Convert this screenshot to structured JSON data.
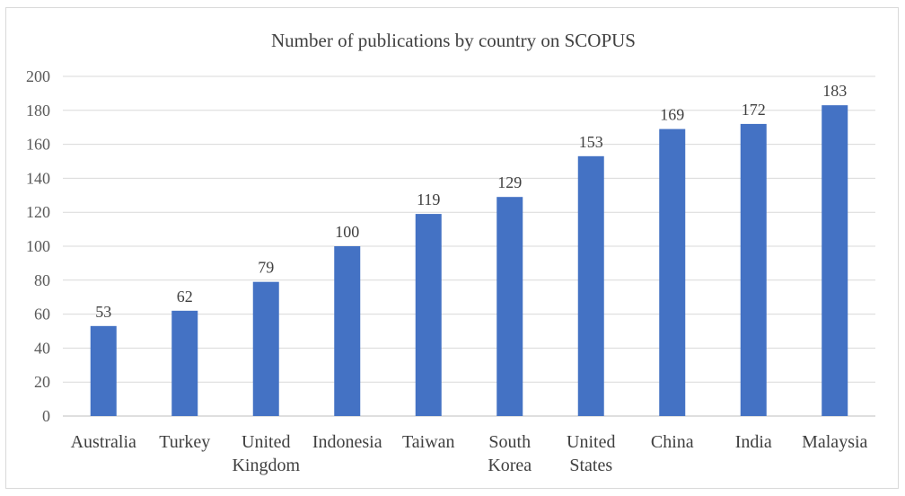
{
  "chart_data": {
    "type": "bar",
    "title": "Number of publications by country on SCOPUS",
    "xlabel": "",
    "ylabel": "",
    "ylim": [
      0,
      200
    ],
    "yticks": [
      0,
      20,
      40,
      60,
      80,
      100,
      120,
      140,
      160,
      180,
      200
    ],
    "grid": true,
    "legend": "none",
    "categories": [
      "Australia",
      "Turkey",
      "United Kingdom",
      "Indonesia",
      "Taiwan",
      "South Korea",
      "United States",
      "China",
      "India",
      "Malaysia"
    ],
    "category_lines": [
      [
        "Australia"
      ],
      [
        "Turkey"
      ],
      [
        "United",
        "Kingdom"
      ],
      [
        "Indonesia"
      ],
      [
        "Taiwan"
      ],
      [
        "South",
        "Korea"
      ],
      [
        "United",
        "States"
      ],
      [
        "China"
      ],
      [
        "India"
      ],
      [
        "Malaysia"
      ]
    ],
    "values": [
      53,
      62,
      79,
      100,
      119,
      129,
      153,
      169,
      172,
      183
    ],
    "bar_color": "#4472C4"
  }
}
